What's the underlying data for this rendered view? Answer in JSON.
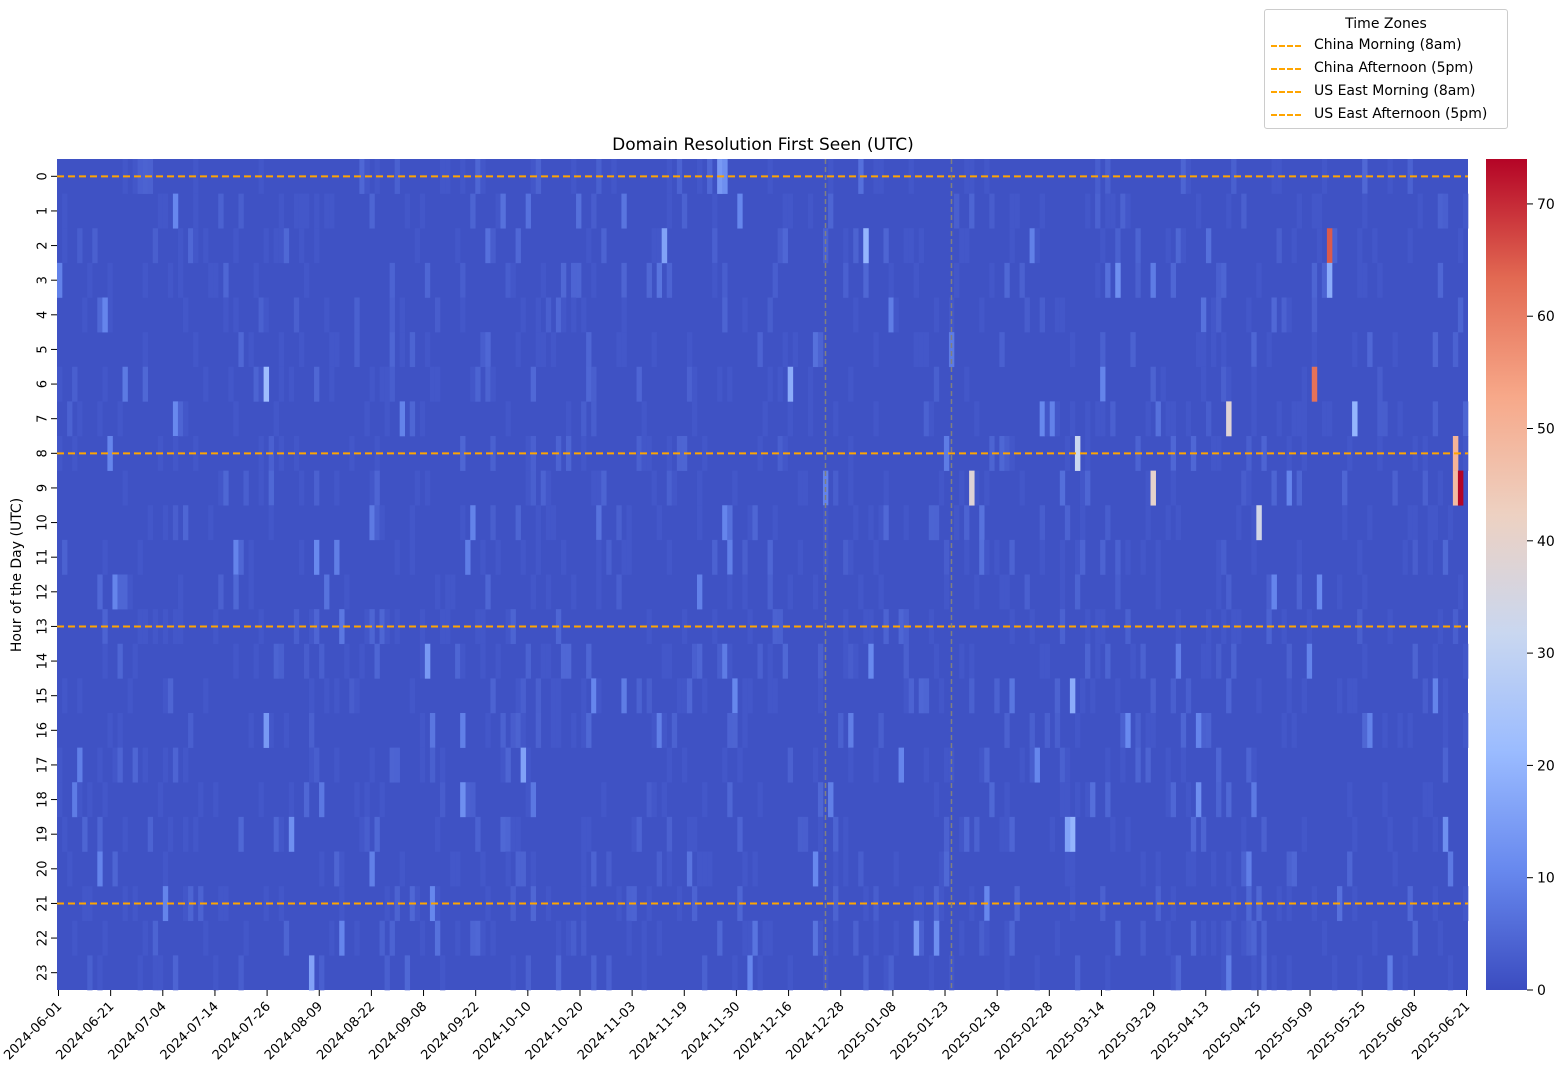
{
  "chart_data": {
    "type": "heatmap",
    "title": "Domain Resolution First Seen (UTC)",
    "xlabel": "",
    "ylabel": "Hour of the Day (UTC)",
    "x_tick_labels": [
      "2024-06-01",
      "2024-06-21",
      "2024-07-04",
      "2024-07-14",
      "2024-07-26",
      "2024-08-09",
      "2024-08-22",
      "2024-09-08",
      "2024-09-22",
      "2024-10-10",
      "2024-10-20",
      "2024-11-03",
      "2024-11-19",
      "2024-11-30",
      "2024-12-16",
      "2024-12-28",
      "2025-01-08",
      "2025-01-23",
      "2025-02-18",
      "2025-02-28",
      "2025-03-14",
      "2025-03-29",
      "2025-04-13",
      "2025-04-25",
      "2025-05-09",
      "2025-05-25",
      "2025-06-08",
      "2025-06-21"
    ],
    "y_tick_labels": [
      "0",
      "1",
      "2",
      "3",
      "4",
      "5",
      "6",
      "7",
      "8",
      "9",
      "10",
      "11",
      "12",
      "13",
      "14",
      "15",
      "16",
      "17",
      "18",
      "19",
      "20",
      "21",
      "22",
      "23"
    ],
    "n_columns": 280,
    "colorbar": {
      "colormap": "coolwarm",
      "min": 0,
      "max": 74,
      "ticks": [
        0,
        10,
        20,
        30,
        40,
        50,
        60,
        70
      ]
    },
    "colormap_stops": [
      "#3b4cc0",
      "#6788ee",
      "#9abbff",
      "#c9d7f0",
      "#edd1c2",
      "#f7a889",
      "#e26952",
      "#b40426"
    ],
    "baseline_value": 1,
    "notable_cells": [
      {
        "col": 252,
        "hour": 2,
        "value": 65
      },
      {
        "col": 252,
        "hour": 3,
        "value": 18
      },
      {
        "col": 249,
        "hour": 6,
        "value": 62
      },
      {
        "col": 232,
        "hour": 7,
        "value": 38
      },
      {
        "col": 202,
        "hour": 8,
        "value": 32
      },
      {
        "col": 277,
        "hour": 8,
        "value": 50
      },
      {
        "col": 181,
        "hour": 9,
        "value": 38
      },
      {
        "col": 217,
        "hour": 9,
        "value": 40
      },
      {
        "col": 277,
        "hour": 9,
        "value": 48
      },
      {
        "col": 278,
        "hour": 9,
        "value": 74
      },
      {
        "col": 238,
        "hour": 10,
        "value": 34
      },
      {
        "col": 41,
        "hour": 6,
        "value": 22
      },
      {
        "col": 145,
        "hour": 6,
        "value": 18
      },
      {
        "col": 160,
        "hour": 2,
        "value": 20
      },
      {
        "col": 120,
        "hour": 2,
        "value": 16
      },
      {
        "col": 73,
        "hour": 14,
        "value": 14
      },
      {
        "col": 92,
        "hour": 17,
        "value": 16
      },
      {
        "col": 201,
        "hour": 15,
        "value": 18
      },
      {
        "col": 201,
        "hour": 19,
        "value": 20
      },
      {
        "col": 200,
        "hour": 19,
        "value": 16
      },
      {
        "col": 257,
        "hour": 7,
        "value": 20
      },
      {
        "col": 50,
        "hour": 23,
        "value": 16
      },
      {
        "col": 131,
        "hour": 0,
        "value": 14
      },
      {
        "col": 170,
        "hour": 22,
        "value": 14
      },
      {
        "col": 174,
        "hour": 22,
        "value": 12
      },
      {
        "col": 9,
        "hour": 4,
        "value": 10
      },
      {
        "col": 153,
        "hour": 18,
        "value": 9
      },
      {
        "col": 275,
        "hour": 19,
        "value": 12
      },
      {
        "col": 10,
        "hour": 8,
        "value": 10
      },
      {
        "col": 80,
        "hour": 18,
        "value": 12
      },
      {
        "col": 226,
        "hour": 18,
        "value": 12
      },
      {
        "col": 226,
        "hour": 16,
        "value": 10
      },
      {
        "col": 46,
        "hour": 19,
        "value": 12
      },
      {
        "col": 41,
        "hour": 16,
        "value": 14
      },
      {
        "col": 210,
        "hour": 3,
        "value": 12
      },
      {
        "col": 241,
        "hour": 12,
        "value": 10
      },
      {
        "col": 167,
        "hour": 17,
        "value": 10
      },
      {
        "col": 132,
        "hour": 0,
        "value": 12
      }
    ],
    "horizontal_lines": [
      {
        "label": "China Morning (8am)",
        "hour": 0.5,
        "color": "#ffa500",
        "style": "dashed"
      },
      {
        "label": "China Afternoon (5pm)",
        "hour": 8.5,
        "color": "#ffa500",
        "style": "dashed"
      },
      {
        "label": "US East Morning (8am)",
        "hour": 13.5,
        "color": "#ffa500",
        "style": "dashed"
      },
      {
        "label": "US East Afternoon (5pm)",
        "hour": 21.5,
        "color": "#ffa500",
        "style": "dashed"
      }
    ],
    "vertical_lines": [
      {
        "col": 152.5,
        "color": "#808080",
        "style": "dashed"
      },
      {
        "col": 177.5,
        "color": "#808080",
        "style": "dashed"
      }
    ],
    "legend": {
      "title": "Time Zones",
      "placement": "top-right, above plot",
      "entries": [
        "China Morning (8am)",
        "China Afternoon (5pm)",
        "US East Morning (8am)",
        "US East Afternoon (5pm)"
      ]
    }
  }
}
